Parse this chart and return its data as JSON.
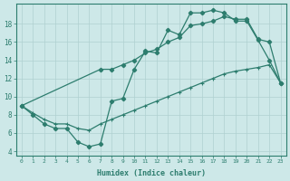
{
  "xlabel": "Humidex (Indice chaleur)",
  "ylabel": "",
  "bg_color": "#cde8e8",
  "line_color": "#2d7d6e",
  "grid_color": "#afd0d0",
  "xlim": [
    -0.5,
    23.5
  ],
  "ylim": [
    3.5,
    20.2
  ],
  "xticks": [
    0,
    1,
    2,
    3,
    4,
    5,
    6,
    7,
    8,
    9,
    10,
    11,
    12,
    13,
    14,
    15,
    16,
    17,
    18,
    19,
    20,
    21,
    22,
    23
  ],
  "yticks": [
    4,
    6,
    8,
    10,
    12,
    14,
    16,
    18
  ],
  "line1_x": [
    0,
    1,
    2,
    3,
    4,
    5,
    6,
    7,
    8,
    9,
    10,
    11,
    12,
    13,
    14,
    15,
    16,
    17,
    18,
    19,
    20,
    21,
    22,
    23
  ],
  "line1_y": [
    9.0,
    8.0,
    7.0,
    6.5,
    6.5,
    5.0,
    4.5,
    4.8,
    9.5,
    9.8,
    13.0,
    15.0,
    14.8,
    17.3,
    16.8,
    19.2,
    19.2,
    19.5,
    19.2,
    18.3,
    18.3,
    16.2,
    14.0,
    11.5
  ],
  "line2_x": [
    0,
    1,
    2,
    3,
    4,
    5,
    6,
    7,
    8,
    9,
    10,
    11,
    12,
    13,
    14,
    15,
    16,
    17,
    18,
    19,
    20,
    21,
    22,
    23
  ],
  "line2_y": [
    9.0,
    8.2,
    7.5,
    7.0,
    7.0,
    6.5,
    6.3,
    7.0,
    7.5,
    8.0,
    8.5,
    9.0,
    9.5,
    10.0,
    10.5,
    11.0,
    11.5,
    12.0,
    12.5,
    12.8,
    13.0,
    13.2,
    13.5,
    11.5
  ],
  "line3_x": [
    0,
    7,
    8,
    9,
    10,
    11,
    12,
    13,
    14,
    15,
    16,
    17,
    18,
    19,
    20,
    21,
    22,
    23
  ],
  "line3_y": [
    9.0,
    13.0,
    13.0,
    13.5,
    14.0,
    14.8,
    15.2,
    16.0,
    16.5,
    17.8,
    18.0,
    18.3,
    18.8,
    18.5,
    18.5,
    16.3,
    16.0,
    11.5
  ]
}
